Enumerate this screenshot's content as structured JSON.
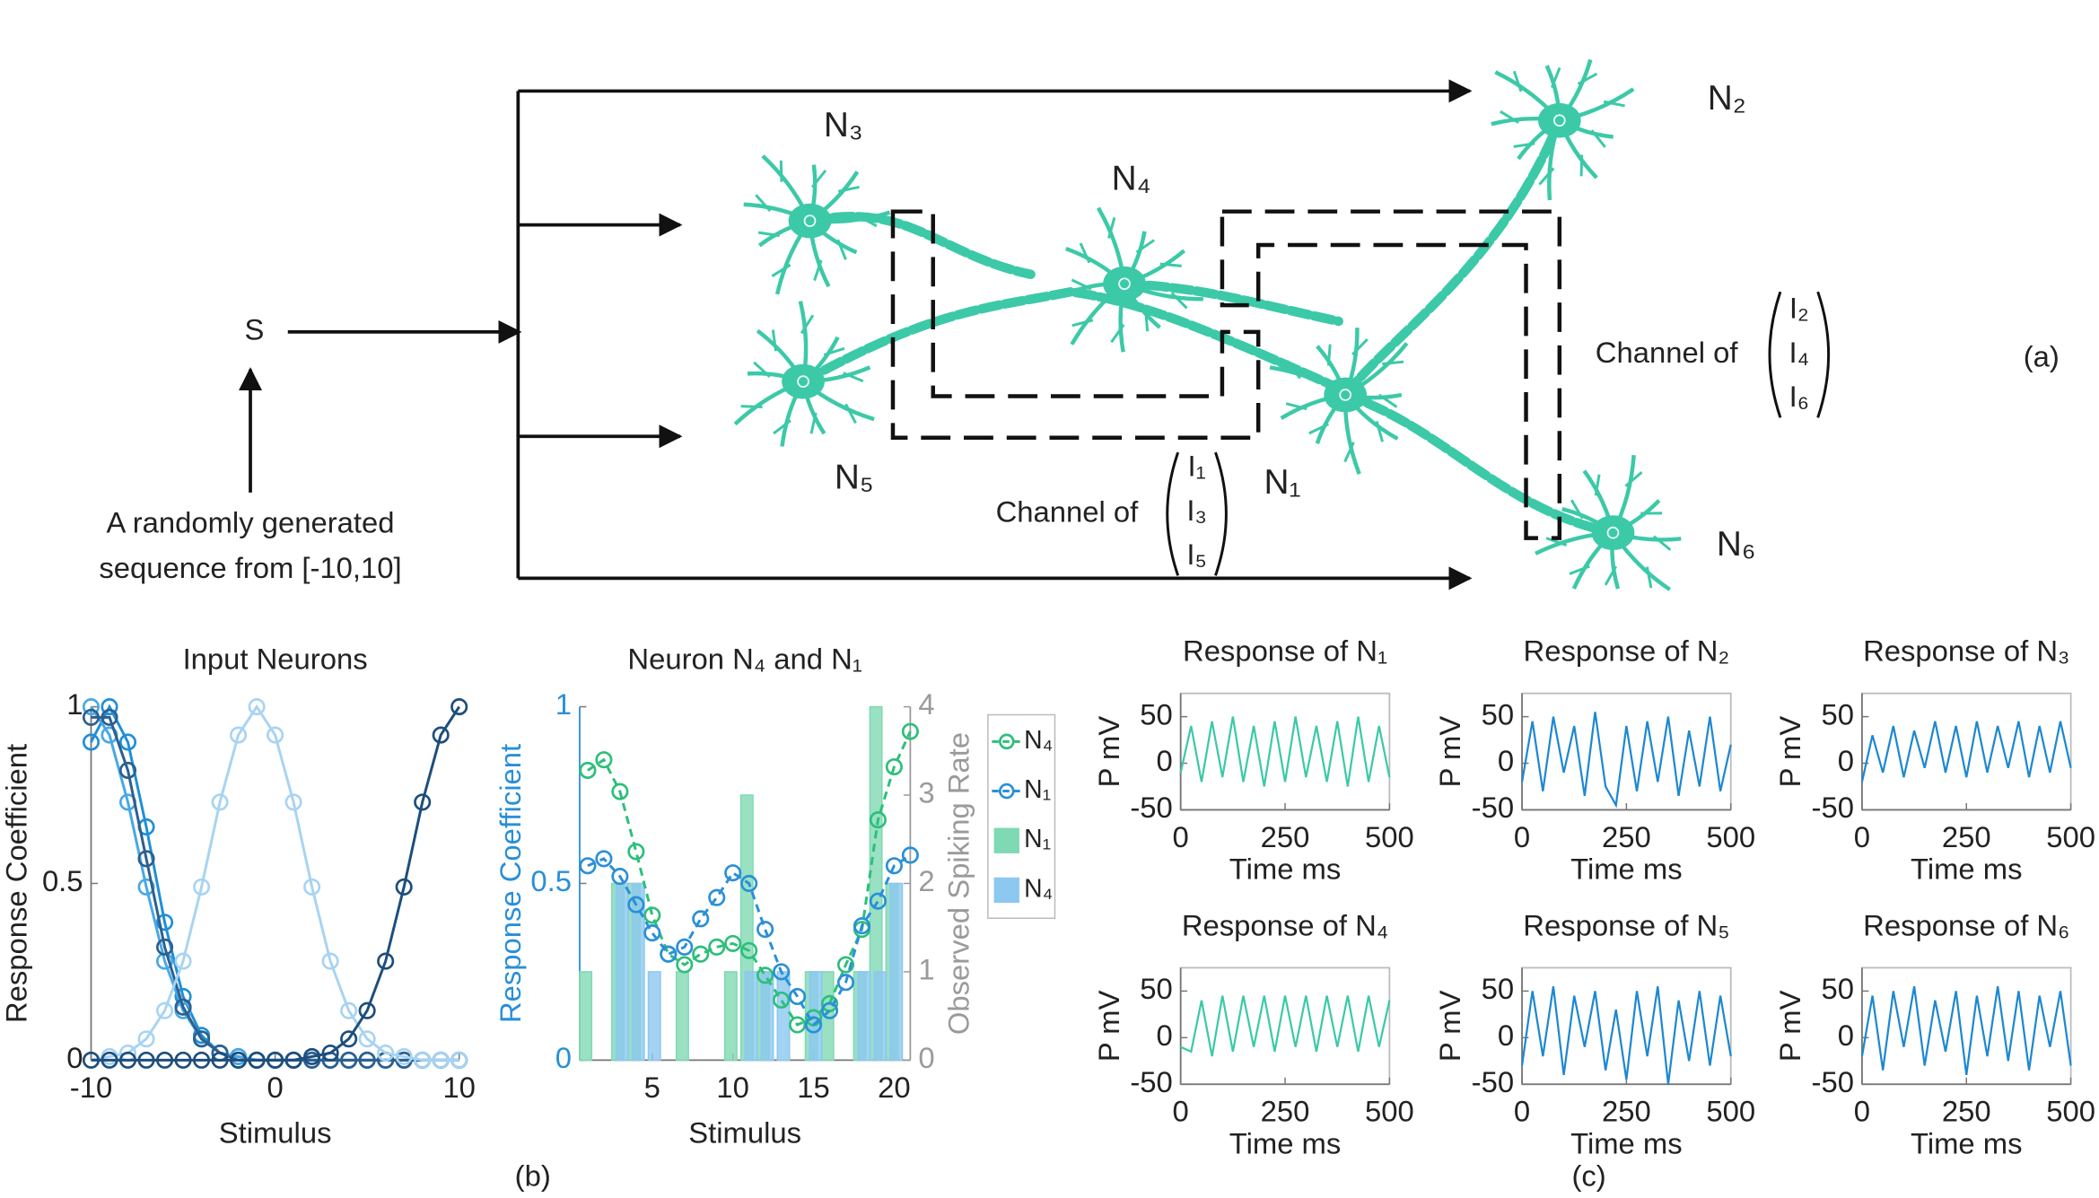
{
  "diagram": {
    "input_label": "S",
    "source_text": [
      "A randomly generated",
      "sequence from [-10,10]"
    ],
    "neurons": [
      "N₁",
      "N₂",
      "N₃",
      "N₄",
      "N₅",
      "N₆"
    ],
    "channels": [
      {
        "label": "Channel of",
        "inputs": [
          "I₁",
          "I₃",
          "I₅"
        ]
      },
      {
        "label": "Channel of",
        "inputs": [
          "I₂",
          "I₄",
          "I₆"
        ]
      }
    ]
  },
  "panel_labels": [
    "(a)",
    "(b)",
    "(c)"
  ],
  "chart_data": [
    {
      "type": "line",
      "title": "Input Neurons",
      "xlabel": "Stimulus",
      "ylabel": "Response Coefficient",
      "x": [
        -10,
        -9,
        -8,
        -7,
        -6,
        -5,
        -4,
        -3,
        -2,
        -1,
        0,
        1,
        2,
        3,
        4,
        5,
        6,
        7,
        8,
        9,
        10
      ],
      "xlim": [
        -10,
        10
      ],
      "ylim": [
        0,
        1
      ],
      "xticks": [
        -10,
        0,
        10
      ],
      "yticks": [
        0,
        0.5,
        1
      ],
      "marker": "circle",
      "series": [
        {
          "color": "#1f8fd8",
          "values": [
            0.9,
            1,
            0.9,
            0.66,
            0.39,
            0.18,
            0.07,
            0.02,
            0.01,
            0,
            0,
            0,
            0,
            0,
            0,
            0,
            0,
            0,
            0,
            0,
            0
          ]
        },
        {
          "color": "#48a8e6",
          "values": [
            1,
            0.92,
            0.73,
            0.49,
            0.28,
            0.14,
            0.06,
            0.02,
            0.01,
            0,
            0,
            0,
            0,
            0,
            0,
            0,
            0,
            0,
            0,
            0,
            0
          ]
        },
        {
          "color": "#2d5f8e",
          "values": [
            0.97,
            0.97,
            0.82,
            0.57,
            0.32,
            0.15,
            0.06,
            0.02,
            0,
            0,
            0,
            0,
            0,
            0,
            0,
            0,
            0,
            0,
            0,
            0,
            0
          ]
        },
        {
          "color": "#a8d4f2",
          "values": [
            0,
            0.01,
            0.02,
            0.06,
            0.14,
            0.28,
            0.49,
            0.73,
            0.92,
            1,
            0.92,
            0.73,
            0.49,
            0.28,
            0.14,
            0.06,
            0.02,
            0.01,
            0,
            0,
            0
          ]
        },
        {
          "color": "#1d4e7d",
          "values": [
            0,
            0,
            0,
            0,
            0,
            0,
            0,
            0,
            0,
            0,
            0,
            0,
            0.01,
            0.02,
            0.06,
            0.14,
            0.28,
            0.49,
            0.73,
            0.92,
            1
          ]
        }
      ]
    },
    {
      "type": "combo",
      "title": "Neuron N₄ and N₁",
      "xlabel": "Stimulus",
      "ylabel": "Response Coefficient",
      "y2label": "Observed Spiking Rate",
      "x": [
        1,
        2,
        3,
        4,
        5,
        6,
        7,
        8,
        9,
        10,
        11,
        12,
        13,
        14,
        15,
        16,
        17,
        18,
        19,
        20,
        21
      ],
      "xlim": [
        0.5,
        21
      ],
      "ylim": [
        0,
        1
      ],
      "y2lim": [
        0,
        4
      ],
      "xticks": [
        5,
        10,
        15,
        20
      ],
      "yticks": [
        0,
        0.5,
        1
      ],
      "y2ticks": [
        0,
        1,
        2,
        3,
        4
      ],
      "axis_colors": {
        "y": "#2a8fd8",
        "y2": "#9a9a9a"
      },
      "legend": "right",
      "series": [
        {
          "name": "N₄",
          "kind": "line",
          "color": "#2dbf7a",
          "values": [
            0.82,
            0.85,
            0.76,
            0.59,
            0.41,
            0.3,
            0.27,
            0.3,
            0.32,
            0.33,
            0.31,
            0.24,
            0.17,
            0.1,
            0.12,
            0.16,
            0.27,
            0.37,
            0.68,
            0.83,
            0.93
          ]
        },
        {
          "name": "N₁",
          "kind": "line",
          "color": "#2a8fd8",
          "values": [
            0.55,
            0.57,
            0.52,
            0.44,
            0.36,
            0.3,
            0.32,
            0.4,
            0.46,
            0.53,
            0.5,
            0.37,
            0.25,
            0.18,
            0.1,
            0.14,
            0.22,
            0.38,
            0.45,
            0.55,
            0.58
          ]
        },
        {
          "name": "N₁",
          "kind": "bar",
          "axis": "y2",
          "color": "#7fd9b3",
          "values": [
            1,
            0,
            2,
            2,
            0,
            0,
            1,
            0,
            0,
            1,
            3,
            1,
            0,
            0,
            1,
            1,
            0,
            1,
            4,
            2,
            0
          ]
        },
        {
          "name": "N₄",
          "kind": "bar",
          "axis": "y2",
          "color": "#8cc8f0",
          "values": [
            0,
            0,
            2,
            2,
            1,
            0,
            0,
            0,
            0,
            0,
            1,
            1,
            1,
            0,
            1,
            0,
            0,
            1,
            1,
            2,
            0
          ]
        }
      ]
    },
    {
      "type": "line",
      "title": "Response of N₁",
      "xlabel": "Time ms",
      "ylabel": "P mV",
      "x": [
        0,
        25,
        50,
        75,
        100,
        125,
        150,
        175,
        200,
        225,
        250,
        275,
        300,
        325,
        350,
        375,
        400,
        425,
        450,
        475,
        500
      ],
      "xlim": [
        0,
        500
      ],
      "ylim": [
        -50,
        75
      ],
      "xticks": [
        0,
        250,
        500
      ],
      "yticks": [
        -50,
        0,
        50
      ],
      "series": [
        {
          "color": "#3cc9a8",
          "values": [
            -10,
            40,
            -20,
            45,
            -15,
            50,
            -20,
            40,
            -25,
            45,
            -20,
            50,
            -15,
            40,
            -20,
            45,
            -25,
            50,
            -20,
            40,
            -15
          ]
        }
      ]
    },
    {
      "type": "line",
      "title": "Response of N₂",
      "xlabel": "Time ms",
      "ylabel": "P mV",
      "x": [
        0,
        25,
        50,
        75,
        100,
        125,
        150,
        175,
        200,
        225,
        250,
        275,
        300,
        325,
        350,
        375,
        400,
        425,
        450,
        475,
        500
      ],
      "xlim": [
        0,
        500
      ],
      "ylim": [
        -50,
        75
      ],
      "xticks": [
        0,
        250,
        500
      ],
      "yticks": [
        -50,
        0,
        50
      ],
      "series": [
        {
          "color": "#1e88d0",
          "values": [
            -20,
            45,
            -30,
            50,
            -10,
            40,
            -35,
            55,
            -25,
            -45,
            40,
            -30,
            45,
            -20,
            50,
            -35,
            35,
            -25,
            50,
            -30,
            20
          ]
        }
      ]
    },
    {
      "type": "line",
      "title": "Response of N₃",
      "xlabel": "Time ms",
      "ylabel": "P mV",
      "x": [
        0,
        25,
        50,
        75,
        100,
        125,
        150,
        175,
        200,
        225,
        250,
        275,
        300,
        325,
        350,
        375,
        400,
        425,
        450,
        475,
        500
      ],
      "xlim": [
        0,
        500
      ],
      "ylim": [
        -50,
        75
      ],
      "xticks": [
        0,
        250,
        500
      ],
      "yticks": [
        -50,
        0,
        50
      ],
      "series": [
        {
          "color": "#1e88d0",
          "values": [
            -20,
            30,
            -10,
            40,
            -15,
            35,
            -5,
            45,
            -10,
            40,
            -15,
            45,
            -10,
            40,
            -5,
            45,
            -15,
            40,
            -10,
            45,
            -5
          ]
        }
      ]
    },
    {
      "type": "line",
      "title": "Response of N₄",
      "xlabel": "Time ms",
      "ylabel": "P mV",
      "x": [
        0,
        25,
        50,
        75,
        100,
        125,
        150,
        175,
        200,
        225,
        250,
        275,
        300,
        325,
        350,
        375,
        400,
        425,
        450,
        475,
        500
      ],
      "xlim": [
        0,
        500
      ],
      "ylim": [
        -50,
        75
      ],
      "xticks": [
        0,
        250,
        500
      ],
      "yticks": [
        -50,
        0,
        50
      ],
      "series": [
        {
          "color": "#3cc9a8",
          "values": [
            -10,
            -15,
            40,
            -20,
            45,
            -15,
            45,
            -10,
            45,
            -15,
            45,
            -10,
            45,
            -15,
            45,
            -10,
            45,
            -15,
            45,
            -10,
            40
          ]
        }
      ]
    },
    {
      "type": "line",
      "title": "Response of N₅",
      "xlabel": "Time ms",
      "ylabel": "P mV",
      "x": [
        0,
        25,
        50,
        75,
        100,
        125,
        150,
        175,
        200,
        225,
        250,
        275,
        300,
        325,
        350,
        375,
        400,
        425,
        450,
        475,
        500
      ],
      "xlim": [
        0,
        500
      ],
      "ylim": [
        -50,
        75
      ],
      "xticks": [
        0,
        250,
        500
      ],
      "yticks": [
        -50,
        0,
        50
      ],
      "series": [
        {
          "color": "#1e88d0",
          "values": [
            -30,
            50,
            -20,
            55,
            -40,
            45,
            -10,
            50,
            -35,
            30,
            -45,
            50,
            -20,
            55,
            -50,
            40,
            -25,
            50,
            -30,
            45,
            -20
          ]
        }
      ]
    },
    {
      "type": "line",
      "title": "Response of N₆",
      "xlabel": "Time ms",
      "ylabel": "P mV",
      "x": [
        0,
        25,
        50,
        75,
        100,
        125,
        150,
        175,
        200,
        225,
        250,
        275,
        300,
        325,
        350,
        375,
        400,
        425,
        450,
        475,
        500
      ],
      "xlim": [
        0,
        500
      ],
      "ylim": [
        -50,
        75
      ],
      "xticks": [
        0,
        250,
        500
      ],
      "yticks": [
        -50,
        0,
        50
      ],
      "series": [
        {
          "color": "#1e88d0",
          "values": [
            -20,
            45,
            -35,
            50,
            -10,
            55,
            -30,
            40,
            -15,
            50,
            -40,
            45,
            -20,
            55,
            -25,
            50,
            -35,
            45,
            -10,
            50,
            -30
          ]
        }
      ]
    }
  ]
}
